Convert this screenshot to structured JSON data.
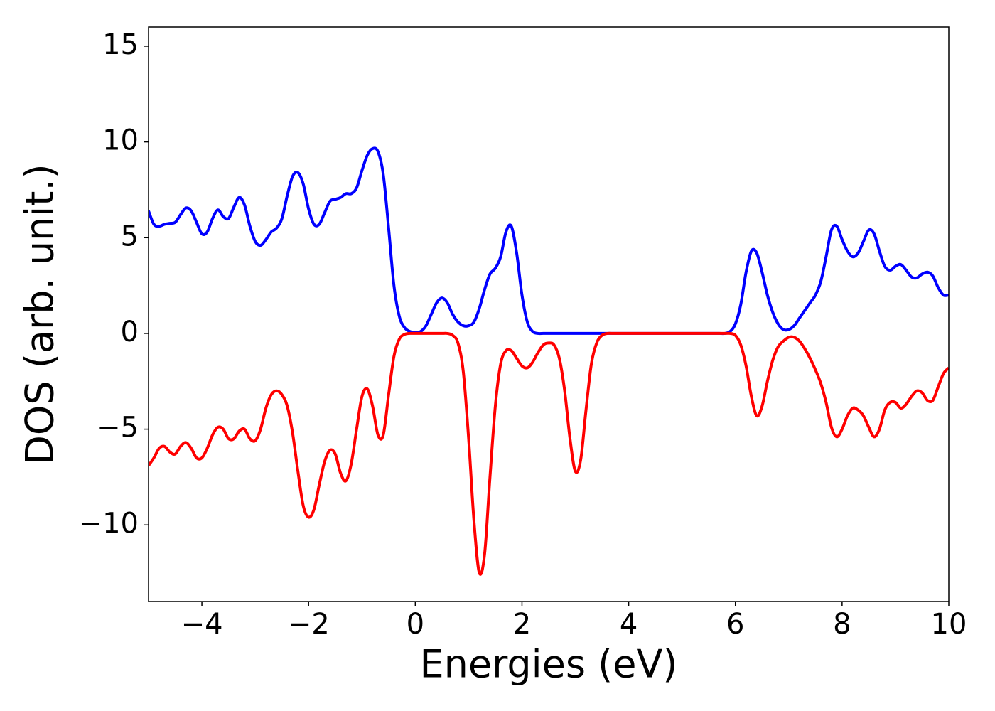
{
  "chart_data": {
    "type": "line",
    "x_label": "Energies (eV)",
    "y_label": "DOS (arb. unit.)",
    "xlim": [
      -5,
      10
    ],
    "ylim": [
      -14,
      16
    ],
    "xticks": [
      {
        "value": -4,
        "label": "−4"
      },
      {
        "value": -2,
        "label": "−2"
      },
      0,
      2,
      4,
      6,
      8,
      10
    ],
    "yticks": [
      {
        "value": -10,
        "label": "−10"
      },
      {
        "value": -5,
        "label": "−5"
      },
      0,
      5,
      10,
      15
    ],
    "grid": false,
    "x": [
      -5.0,
      -4.9,
      -4.8,
      -4.7,
      -4.6,
      -4.5,
      -4.4,
      -4.3,
      -4.2,
      -4.1,
      -4.0,
      -3.9,
      -3.8,
      -3.7,
      -3.6,
      -3.5,
      -3.4,
      -3.3,
      -3.2,
      -3.1,
      -3.0,
      -2.9,
      -2.8,
      -2.7,
      -2.6,
      -2.5,
      -2.4,
      -2.3,
      -2.2,
      -2.1,
      -2.0,
      -1.9,
      -1.8,
      -1.7,
      -1.6,
      -1.5,
      -1.4,
      -1.3,
      -1.2,
      -1.1,
      -1.0,
      -0.9,
      -0.8,
      -0.7,
      -0.6,
      -0.5,
      -0.4,
      -0.3,
      -0.2,
      -0.1,
      0.0,
      0.1,
      0.2,
      0.3,
      0.4,
      0.5,
      0.6,
      0.7,
      0.8,
      0.9,
      1.0,
      1.1,
      1.2,
      1.3,
      1.4,
      1.5,
      1.6,
      1.7,
      1.8,
      1.9,
      2.0,
      2.1,
      2.2,
      2.3,
      2.4,
      2.5,
      2.6,
      2.7,
      2.8,
      2.9,
      3.0,
      3.1,
      3.2,
      3.3,
      3.4,
      3.5,
      3.6,
      3.7,
      3.8,
      3.9,
      4.0,
      4.1,
      4.2,
      4.3,
      4.4,
      4.5,
      4.6,
      4.7,
      4.8,
      4.9,
      5.0,
      5.1,
      5.2,
      5.3,
      5.4,
      5.5,
      5.6,
      5.7,
      5.8,
      5.9,
      6.0,
      6.1,
      6.2,
      6.3,
      6.4,
      6.5,
      6.6,
      6.7,
      6.8,
      6.9,
      7.0,
      7.1,
      7.2,
      7.3,
      7.4,
      7.5,
      7.6,
      7.7,
      7.8,
      7.9,
      8.0,
      8.1,
      8.2,
      8.3,
      8.4,
      8.5,
      8.6,
      8.7,
      8.8,
      8.9,
      9.0,
      9.1,
      9.2,
      9.3,
      9.4,
      9.5,
      9.6,
      9.7,
      9.8,
      9.9,
      10.0
    ],
    "series": [
      {
        "color": "#0000ff",
        "values": [
          6.4,
          5.7,
          5.6,
          5.7,
          5.75,
          5.8,
          6.2,
          6.55,
          6.4,
          5.8,
          5.2,
          5.3,
          6.0,
          6.45,
          6.1,
          6.0,
          6.6,
          7.1,
          6.7,
          5.6,
          4.8,
          4.6,
          4.9,
          5.3,
          5.5,
          6.0,
          7.2,
          8.2,
          8.4,
          7.8,
          6.5,
          5.7,
          5.7,
          6.3,
          6.9,
          7.0,
          7.1,
          7.3,
          7.3,
          7.6,
          8.5,
          9.3,
          9.65,
          9.5,
          8.3,
          5.5,
          2.5,
          0.9,
          0.3,
          0.1,
          0.05,
          0.1,
          0.4,
          1.0,
          1.6,
          1.85,
          1.6,
          1.0,
          0.6,
          0.4,
          0.4,
          0.6,
          1.3,
          2.3,
          3.1,
          3.4,
          4.0,
          5.3,
          5.6,
          4.2,
          2.0,
          0.6,
          0.1,
          0,
          0,
          0,
          0,
          0,
          0,
          0,
          0,
          0,
          0,
          0,
          0,
          0,
          0,
          0,
          0,
          0,
          0,
          0,
          0,
          0,
          0,
          0,
          0,
          0,
          0,
          0,
          0,
          0,
          0,
          0,
          0,
          0,
          0,
          0,
          0,
          0.1,
          0.5,
          1.5,
          3.2,
          4.3,
          4.2,
          3.2,
          2.0,
          1.1,
          0.5,
          0.2,
          0.2,
          0.4,
          0.8,
          1.2,
          1.6,
          2.0,
          2.7,
          4.0,
          5.4,
          5.6,
          4.9,
          4.3,
          4.0,
          4.2,
          4.8,
          5.4,
          5.2,
          4.3,
          3.5,
          3.3,
          3.5,
          3.6,
          3.3,
          2.95,
          2.9,
          3.1,
          3.2,
          3.0,
          2.4,
          2.0,
          2.0
        ]
      },
      {
        "color": "#ff0000",
        "values": [
          -6.9,
          -6.5,
          -6.0,
          -5.9,
          -6.2,
          -6.3,
          -5.9,
          -5.7,
          -6.0,
          -6.5,
          -6.5,
          -6.0,
          -5.3,
          -4.9,
          -5.0,
          -5.5,
          -5.5,
          -5.1,
          -5.0,
          -5.5,
          -5.6,
          -5.0,
          -3.9,
          -3.2,
          -3.0,
          -3.2,
          -3.8,
          -5.2,
          -7.2,
          -9.0,
          -9.6,
          -9.2,
          -7.9,
          -6.7,
          -6.1,
          -6.3,
          -7.3,
          -7.7,
          -6.8,
          -5.0,
          -3.3,
          -2.9,
          -3.8,
          -5.3,
          -5.3,
          -3.2,
          -1.2,
          -0.3,
          -0.05,
          0,
          0,
          0,
          0,
          0,
          0,
          0,
          0,
          -0.1,
          -0.5,
          -2.0,
          -5.5,
          -9.8,
          -12.5,
          -11.5,
          -7.5,
          -3.8,
          -1.6,
          -0.9,
          -0.9,
          -1.3,
          -1.7,
          -1.8,
          -1.5,
          -1.0,
          -0.6,
          -0.5,
          -0.6,
          -1.3,
          -3.0,
          -5.5,
          -7.2,
          -6.6,
          -4.0,
          -1.6,
          -0.5,
          -0.1,
          0,
          0,
          0,
          0,
          0,
          0,
          0,
          0,
          0,
          0,
          0,
          0,
          0,
          0,
          0,
          0,
          0,
          0,
          0,
          0,
          0,
          0,
          0,
          0,
          -0.1,
          -0.6,
          -1.7,
          -3.3,
          -4.3,
          -3.8,
          -2.5,
          -1.4,
          -0.7,
          -0.4,
          -0.2,
          -0.2,
          -0.4,
          -0.8,
          -1.3,
          -1.9,
          -2.6,
          -3.6,
          -4.9,
          -5.4,
          -5.0,
          -4.3,
          -3.9,
          -4.0,
          -4.3,
          -4.9,
          -5.4,
          -5.0,
          -4.0,
          -3.6,
          -3.6,
          -3.9,
          -3.7,
          -3.3,
          -3.0,
          -3.1,
          -3.5,
          -3.5,
          -2.8,
          -2.1,
          -1.8
        ]
      }
    ]
  }
}
